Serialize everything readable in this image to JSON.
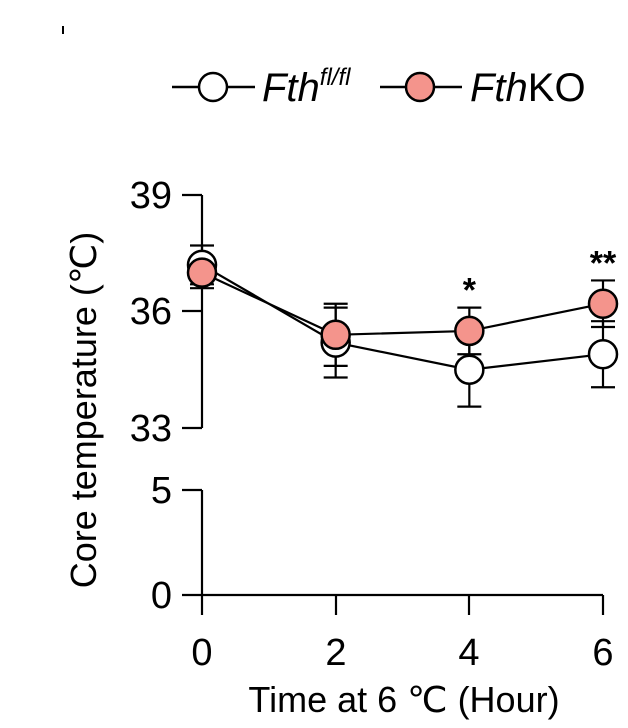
{
  "chart_data": {
    "type": "line",
    "xlabel": "Time at 6 ℃ (Hour)",
    "ylabel": "Core temperature (℃)",
    "x": [
      0,
      2,
      4,
      6
    ],
    "x_tick_labels": [
      "0",
      "2",
      "4",
      "6"
    ],
    "y_axis_break": {
      "lower_segment": [
        0,
        5
      ],
      "upper_segment": [
        33,
        39
      ]
    },
    "y_tick_labels": [
      "0",
      "5",
      "33",
      "36",
      "39"
    ],
    "legend_placement": "top-right",
    "series": [
      {
        "name_main": "Fth",
        "name_sup": "fl/fl",
        "marker": "open-circle",
        "color": "#ffffff",
        "values": [
          37.2,
          35.2,
          34.5,
          34.9
        ],
        "errors": [
          0.5,
          0.9,
          0.95,
          0.85
        ]
      },
      {
        "name_main": "Fth",
        "name_suffix": "KO",
        "marker": "filled-circle",
        "color": "#f4948c",
        "values": [
          37.0,
          35.4,
          35.5,
          36.2
        ],
        "errors": [
          0.4,
          0.8,
          0.6,
          0.6
        ]
      }
    ],
    "annotations": [
      {
        "x": 4,
        "text": "*"
      },
      {
        "x": 6,
        "text": "**"
      }
    ],
    "grid": false
  }
}
